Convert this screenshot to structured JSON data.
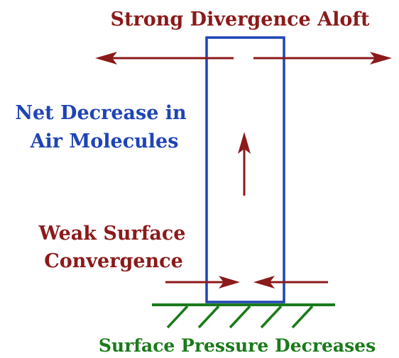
{
  "labels": {
    "top": "Strong Divergence Aloft",
    "middle_line1": "Net Decrease in",
    "middle_line2": "Air Molecules",
    "lower_line1": "Weak Surface",
    "lower_line2": "Convergence",
    "bottom": "Surface Pressure Decreases"
  },
  "colors": {
    "maroon": "#8b1a1a",
    "blue": "#1f44b5",
    "green": "#1a7a1a"
  }
}
